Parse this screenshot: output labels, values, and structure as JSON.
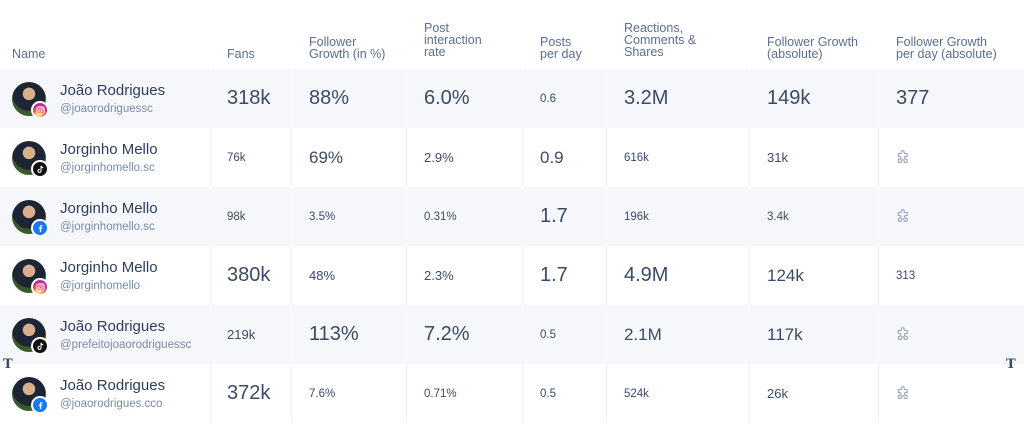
{
  "headers": {
    "name": "Name",
    "fans": "Fans",
    "follower_growth_pct": [
      "Follower",
      "Growth (in %)"
    ],
    "post_interaction": [
      "Post",
      "interaction",
      "rate"
    ],
    "posts_per_day": [
      "Posts",
      "per day"
    ],
    "reactions": [
      "Reactions,",
      "Comments &",
      "Shares"
    ],
    "growth_abs": [
      "Follower Growth",
      "(absolute)"
    ],
    "growth_per_day": [
      "Follower Growth",
      "per day (absolute)"
    ]
  },
  "rows": [
    {
      "name": "João Rodrigues",
      "handle": "@joaorodriguessc",
      "network": "instagram",
      "fans": "318k",
      "growth_pct": "88%",
      "interaction": "6.0%",
      "posts_per_day": "0.6",
      "reactions": "3.2M",
      "growth_abs": "149k",
      "growth_per_day": "377"
    },
    {
      "name": "Jorginho Mello",
      "handle": "@jorginhomello.sc",
      "network": "tiktok",
      "fans": "76k",
      "growth_pct": "69%",
      "interaction": "2.9%",
      "posts_per_day": "0.9",
      "reactions": "616k",
      "growth_abs": "31k",
      "growth_per_day": null
    },
    {
      "name": "Jorginho Mello",
      "handle": "@jorginhomello.sc",
      "network": "facebook",
      "fans": "98k",
      "growth_pct": "3.5%",
      "interaction": "0.31%",
      "posts_per_day": "1.7",
      "reactions": "196k",
      "growth_abs": "3.4k",
      "growth_per_day": null
    },
    {
      "name": "Jorginho Mello",
      "handle": "@jorginhomello",
      "network": "instagram",
      "fans": "380k",
      "growth_pct": "48%",
      "interaction": "2.3%",
      "posts_per_day": "1.7",
      "reactions": "4.9M",
      "growth_abs": "124k",
      "growth_per_day": "313"
    },
    {
      "name": "João Rodrigues",
      "handle": "@prefeitojoaorodriguessc",
      "network": "tiktok",
      "fans": "219k",
      "growth_pct": "113%",
      "interaction": "7.2%",
      "posts_per_day": "0.5",
      "reactions": "2.1M",
      "growth_abs": "117k",
      "growth_per_day": null
    },
    {
      "name": "João Rodrigues",
      "handle": "@joaorodrigues.cco",
      "network": "facebook",
      "fans": "372k",
      "growth_pct": "7.6%",
      "interaction": "0.71%",
      "posts_per_day": "0.5",
      "reactions": "524k",
      "growth_abs": "26k",
      "growth_per_day": null
    }
  ],
  "marks": {
    "left": "T",
    "right": "T"
  },
  "colors": {
    "text": "#3b4a66",
    "header": "#5d6d8e",
    "alt_row": "#f5f7fa"
  }
}
